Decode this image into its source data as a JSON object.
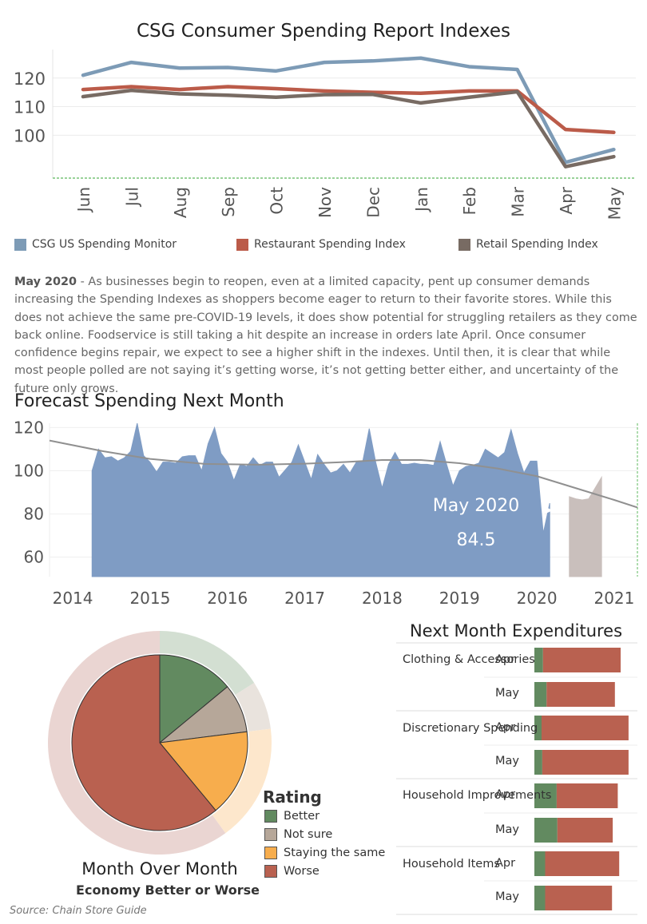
{
  "top_title": "CSG Consumer Spending Report Indexes",
  "legend": [
    {
      "label": "CSG US Spending Monitor",
      "color": "#7d9bb6"
    },
    {
      "label": "Restaurant Spending Index",
      "color": "#bb5b49"
    },
    {
      "label": "Retail Spending Index",
      "color": "#786b63"
    }
  ],
  "paragraph": {
    "lead": "May 2020",
    "body": " - As businesses begin to reopen, even at a limited capacity, pent up consumer demands increasing the Spending Indexes as shoppers become eager to return to their favorite stores. While this does not achieve the same pre-COVID-19 levels, it does show potential for struggling retailers as they come back online. Foodservice is still taking a hit despite an increase in orders late April. Once consumer confidence begins repair, we expect to see a higher shift in the indexes. Until then, it is clear that while most people polled are not saying it’s getting worse, it’s not getting better either, and uncertainty of the future only grows."
  },
  "forecast_title": "Forecast Spending Next Month",
  "forecast_annotation": {
    "label": "May 2020",
    "value": "84.5"
  },
  "expenditures_title": "Next Month Expenditures",
  "rating_title": "Rating",
  "pie_title": "Month Over Month",
  "pie_subtitle": "Economy Better or Worse",
  "source": "Source: Chain Store Guide",
  "chart_data": [
    {
      "type": "line",
      "title": "CSG Consumer Spending Report Indexes",
      "categories": [
        "Jun",
        "Jul",
        "Aug",
        "Sep",
        "Oct",
        "Nov",
        "Dec",
        "Jan",
        "Feb",
        "Mar",
        "Apr",
        "May"
      ],
      "ylim": [
        85,
        130
      ],
      "yticks": [
        100,
        110,
        120
      ],
      "series": [
        {
          "name": "CSG US Spending Monitor",
          "color": "#7d9bb6",
          "values": [
            121,
            125.5,
            123.5,
            123.7,
            122.5,
            125.5,
            126,
            127,
            124,
            123,
            90.5,
            95
          ]
        },
        {
          "name": "Restaurant Spending Index",
          "color": "#bb5b49",
          "values": [
            116,
            117,
            116,
            117,
            116.3,
            115.5,
            115,
            114.7,
            115.5,
            115.5,
            102,
            101
          ]
        },
        {
          "name": "Retail Spending Index",
          "color": "#786b63",
          "values": [
            113.5,
            115.7,
            114.5,
            114,
            113.3,
            114.2,
            114.3,
            111.3,
            113.3,
            115.2,
            89,
            92.5
          ]
        }
      ]
    },
    {
      "type": "area",
      "title": "Forecast Spending Next Month",
      "xlim": [
        2013.7,
        2021.3
      ],
      "ylim": [
        51,
        122
      ],
      "yticks": [
        60,
        80,
        100,
        120
      ],
      "xticks": [
        "2014",
        "2015",
        "2016",
        "2017",
        "2018",
        "2019",
        "2020",
        "2021"
      ],
      "series": [
        {
          "name": "actual",
          "color": "#7f9cc4",
          "x_start": 2014.25,
          "step": 0.08333,
          "values": [
            100,
            110,
            106,
            106.5,
            104.5,
            106,
            109,
            122,
            107,
            104,
            99.5,
            104,
            104,
            103.5,
            106.5,
            107,
            107,
            100,
            112.5,
            120,
            108,
            104,
            95.5,
            103,
            102,
            106,
            102.5,
            104,
            104,
            97,
            100.5,
            104,
            112,
            104,
            96,
            107.5,
            103,
            99,
            100,
            103,
            99,
            104,
            104.5,
            119.5,
            104,
            92,
            103,
            108.5,
            103,
            103,
            103.5,
            103,
            103,
            102.5,
            113.5,
            103,
            93,
            100,
            102,
            102.5,
            103.5,
            110,
            108,
            106,
            108.5,
            119,
            108,
            99,
            104.5,
            104.5,
            71,
            85
          ]
        },
        {
          "name": "forecast",
          "color": "#c9bfbc",
          "x_start": 2020.42,
          "step": 0.08333,
          "values": [
            88,
            87,
            86.5,
            87,
            92,
            97
          ]
        },
        {
          "name": "trend",
          "color": "#909090",
          "type": "line",
          "x": [
            2013.7,
            2014.4,
            2015,
            2015.7,
            2016.4,
            2017,
            2017.5,
            2018,
            2018.5,
            2019,
            2019.5,
            2020,
            2020.5,
            2021,
            2021.3
          ],
          "values": [
            114,
            109,
            105.5,
            103.2,
            102.8,
            103.3,
            104,
            105,
            105,
            103.5,
            101,
            97.5,
            92,
            86.5,
            83
          ]
        }
      ]
    },
    {
      "type": "bar",
      "title": "Next Month Expenditures",
      "categories": [
        {
          "label": "Clothing & Accessories",
          "months": [
            "Apr",
            "May"
          ],
          "better": [
            12,
            17
          ],
          "worse": [
            108,
            95
          ]
        },
        {
          "label": "Discretionary Spending",
          "months": [
            "Apr",
            "May"
          ],
          "better": [
            10,
            11
          ],
          "worse": [
            121,
            120
          ]
        },
        {
          "label": "Household Improvements",
          "months": [
            "Apr",
            "May"
          ],
          "better": [
            31,
            32
          ],
          "worse": [
            85,
            77
          ]
        },
        {
          "label": "Household Items",
          "months": [
            "Apr",
            "May"
          ],
          "better": [
            15,
            15
          ],
          "worse": [
            103,
            93
          ]
        }
      ],
      "colors": {
        "better": "#628a60",
        "worse": "#b96150"
      }
    },
    {
      "type": "pie",
      "title": "Month Over Month",
      "subtitle": "Economy Better or Worse",
      "legend_title": "Rating",
      "slices": [
        {
          "label": "Better",
          "value": 14,
          "color": "#628a60",
          "outer_color": "#d3dfd2"
        },
        {
          "label": "Not sure",
          "value": 9,
          "color": "#b6a799",
          "outer_color": "#e9e3dd"
        },
        {
          "label": "Staying the same",
          "value": 16,
          "color": "#f7ad4d",
          "outer_color": "#fde7cc"
        },
        {
          "label": "Worse",
          "value": 61,
          "color": "#b96150",
          "outer_color": "#ead5d2"
        }
      ],
      "outer_ring": [
        {
          "label": "Better",
          "value": 16
        },
        {
          "label": "Not sure",
          "value": 7
        },
        {
          "label": "Staying the same",
          "value": 17
        },
        {
          "label": "Worse",
          "value": 60
        }
      ]
    }
  ]
}
